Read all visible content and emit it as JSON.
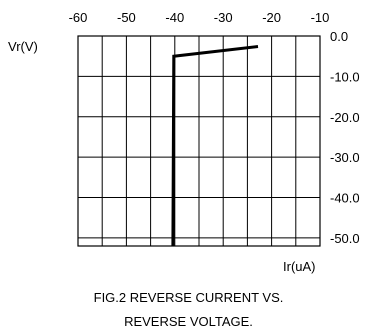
{
  "chart_data": {
    "type": "line",
    "title": "",
    "xlabel": "Ir(uA)",
    "ylabel": "Vr(V)",
    "xlim": [
      -60,
      -10
    ],
    "ylim": [
      -52,
      0
    ],
    "x_ticks": [
      "-60",
      "-50",
      "-40",
      "-30",
      "-20",
      "-10"
    ],
    "x_tick_values": [
      -60,
      -50,
      -40,
      -30,
      -20,
      -10
    ],
    "y_ticks": [
      "0.0",
      "-10.0",
      "-20.0",
      "-30.0",
      "-40.0",
      "-50.0"
    ],
    "y_tick_values": [
      0,
      -10,
      -20,
      -30,
      -40,
      -50
    ],
    "grid": true,
    "series": [
      {
        "x": [
          -40.4,
          -40.2,
          -22.8
        ],
        "y": [
          -52.0,
          -5.0,
          -2.6
        ]
      }
    ]
  },
  "caption": {
    "line1": "FIG.2 REVERSE CURRENT VS.",
    "line2": "REVERSE VOLTAGE."
  }
}
